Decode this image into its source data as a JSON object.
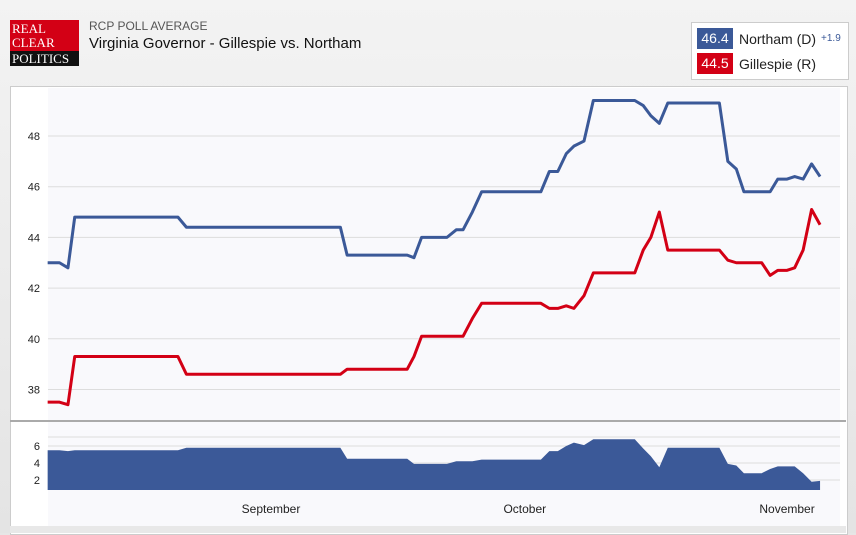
{
  "header": {
    "subtitle": "RCP POLL AVERAGE",
    "title": "Virginia Governor - Gillespie vs. Northam",
    "logo_text": [
      "REAL",
      "CLEAR",
      "POLITICS"
    ]
  },
  "legend": [
    {
      "value": "46.4",
      "name": "Northam (D)",
      "change": "+1.9",
      "color": "#3b5998"
    },
    {
      "value": "44.5",
      "name": "Gillespie (R)",
      "color": "#d30015"
    }
  ],
  "chart_data": {
    "type": "line",
    "title": "Virginia Governor - Gillespie vs. Northam",
    "x_unit": "days from September 1",
    "x_ticks": [
      {
        "d": 0,
        "label": "September"
      },
      {
        "d": 30,
        "label": "October"
      },
      {
        "d": 61,
        "label": "November"
      }
    ],
    "ylim": [
      37,
      49.8
    ],
    "y_ticks": [
      38,
      40,
      42,
      44,
      46,
      48
    ],
    "spread_ticks": [
      2,
      4,
      6
    ],
    "spread_ylim": [
      0.8,
      7.5
    ],
    "grid": true,
    "series": [
      {
        "name": "Northam (D)",
        "color": "#3b5998",
        "points": [
          [
            -26.4,
            43
          ],
          [
            -25,
            43
          ],
          [
            -24,
            42.8
          ],
          [
            -23.2,
            44.8
          ],
          [
            -11,
            44.8
          ],
          [
            -10,
            44.4
          ],
          [
            8.2,
            44.4
          ],
          [
            9,
            43.3
          ],
          [
            16.1,
            43.3
          ],
          [
            16.9,
            43.2
          ],
          [
            17.8,
            44
          ],
          [
            20.8,
            44
          ],
          [
            21.9,
            44.3
          ],
          [
            22.7,
            44.3
          ],
          [
            23.8,
            45
          ],
          [
            24.9,
            45.8
          ],
          [
            31.9,
            45.8
          ],
          [
            32.9,
            46.6
          ],
          [
            33.9,
            46.6
          ],
          [
            34.9,
            47.3
          ],
          [
            35.8,
            47.6
          ],
          [
            37,
            47.8
          ],
          [
            38.1,
            49.4
          ],
          [
            43,
            49.4
          ],
          [
            44,
            49.2
          ],
          [
            44.9,
            48.8
          ],
          [
            45.9,
            48.5
          ],
          [
            46.9,
            49.3
          ],
          [
            53,
            49.3
          ],
          [
            54,
            47
          ],
          [
            55,
            46.7
          ],
          [
            55.9,
            45.8
          ],
          [
            59,
            45.8
          ],
          [
            59.9,
            46.3
          ],
          [
            61,
            46.3
          ],
          [
            61.9,
            46.4
          ],
          [
            62.9,
            46.3
          ],
          [
            63.9,
            46.9
          ],
          [
            64.9,
            46.4
          ]
        ]
      },
      {
        "name": "Gillespie (R)",
        "color": "#d30015",
        "points": [
          [
            -26.4,
            37.5
          ],
          [
            -25,
            37.5
          ],
          [
            -24,
            37.4
          ],
          [
            -23.2,
            39.3
          ],
          [
            -11,
            39.3
          ],
          [
            -10,
            38.6
          ],
          [
            8.2,
            38.6
          ],
          [
            9,
            38.8
          ],
          [
            16.1,
            38.8
          ],
          [
            16.9,
            39.3
          ],
          [
            17.8,
            40.1
          ],
          [
            22.7,
            40.1
          ],
          [
            23.8,
            40.8
          ],
          [
            24.9,
            41.4
          ],
          [
            31.9,
            41.4
          ],
          [
            32.9,
            41.2
          ],
          [
            33.9,
            41.2
          ],
          [
            34.9,
            41.3
          ],
          [
            35.8,
            41.2
          ],
          [
            37,
            41.7
          ],
          [
            38.1,
            42.6
          ],
          [
            43,
            42.6
          ],
          [
            44,
            43.5
          ],
          [
            44.9,
            44
          ],
          [
            45.9,
            45
          ],
          [
            46.9,
            43.5
          ],
          [
            53,
            43.5
          ],
          [
            54,
            43.1
          ],
          [
            55,
            43
          ],
          [
            58,
            43
          ],
          [
            59,
            42.5
          ],
          [
            59.9,
            42.7
          ],
          [
            61,
            42.7
          ],
          [
            61.9,
            42.8
          ],
          [
            62.9,
            43.5
          ],
          [
            63.9,
            45.1
          ],
          [
            64.9,
            44.5
          ]
        ]
      }
    ]
  }
}
